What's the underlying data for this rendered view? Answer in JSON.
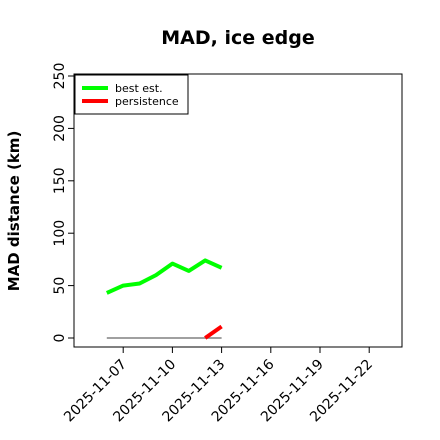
{
  "chart_data": {
    "type": "line",
    "title": "MAD, ice edge",
    "xlabel": "",
    "ylabel": "MAD distance (km)",
    "xlim": [
      "2025-11-04",
      "2025-11-24"
    ],
    "ylim": [
      0,
      250
    ],
    "xticks": [
      "2025-11-07",
      "2025-11-10",
      "2025-11-13",
      "2025-11-16",
      "2025-11-19",
      "2025-11-22"
    ],
    "yticks": [
      0,
      50,
      100,
      150,
      200,
      250
    ],
    "grid": false,
    "legend_position": "top-left",
    "series": [
      {
        "name": "best est.",
        "color": "#00ff00",
        "x": [
          "2025-11-06",
          "2025-11-07",
          "2025-11-08",
          "2025-11-09",
          "2025-11-10",
          "2025-11-11",
          "2025-11-12",
          "2025-11-13"
        ],
        "y": [
          43,
          50,
          52,
          60,
          71,
          64,
          74,
          67
        ]
      },
      {
        "name": "persistence",
        "color": "#ff0000",
        "x": [
          "2025-11-12",
          "2025-11-13"
        ],
        "y": [
          0,
          11
        ]
      }
    ],
    "reference_line": {
      "color": "#808080",
      "x": [
        "2025-11-06",
        "2025-11-13"
      ],
      "y": [
        0,
        0
      ]
    }
  }
}
